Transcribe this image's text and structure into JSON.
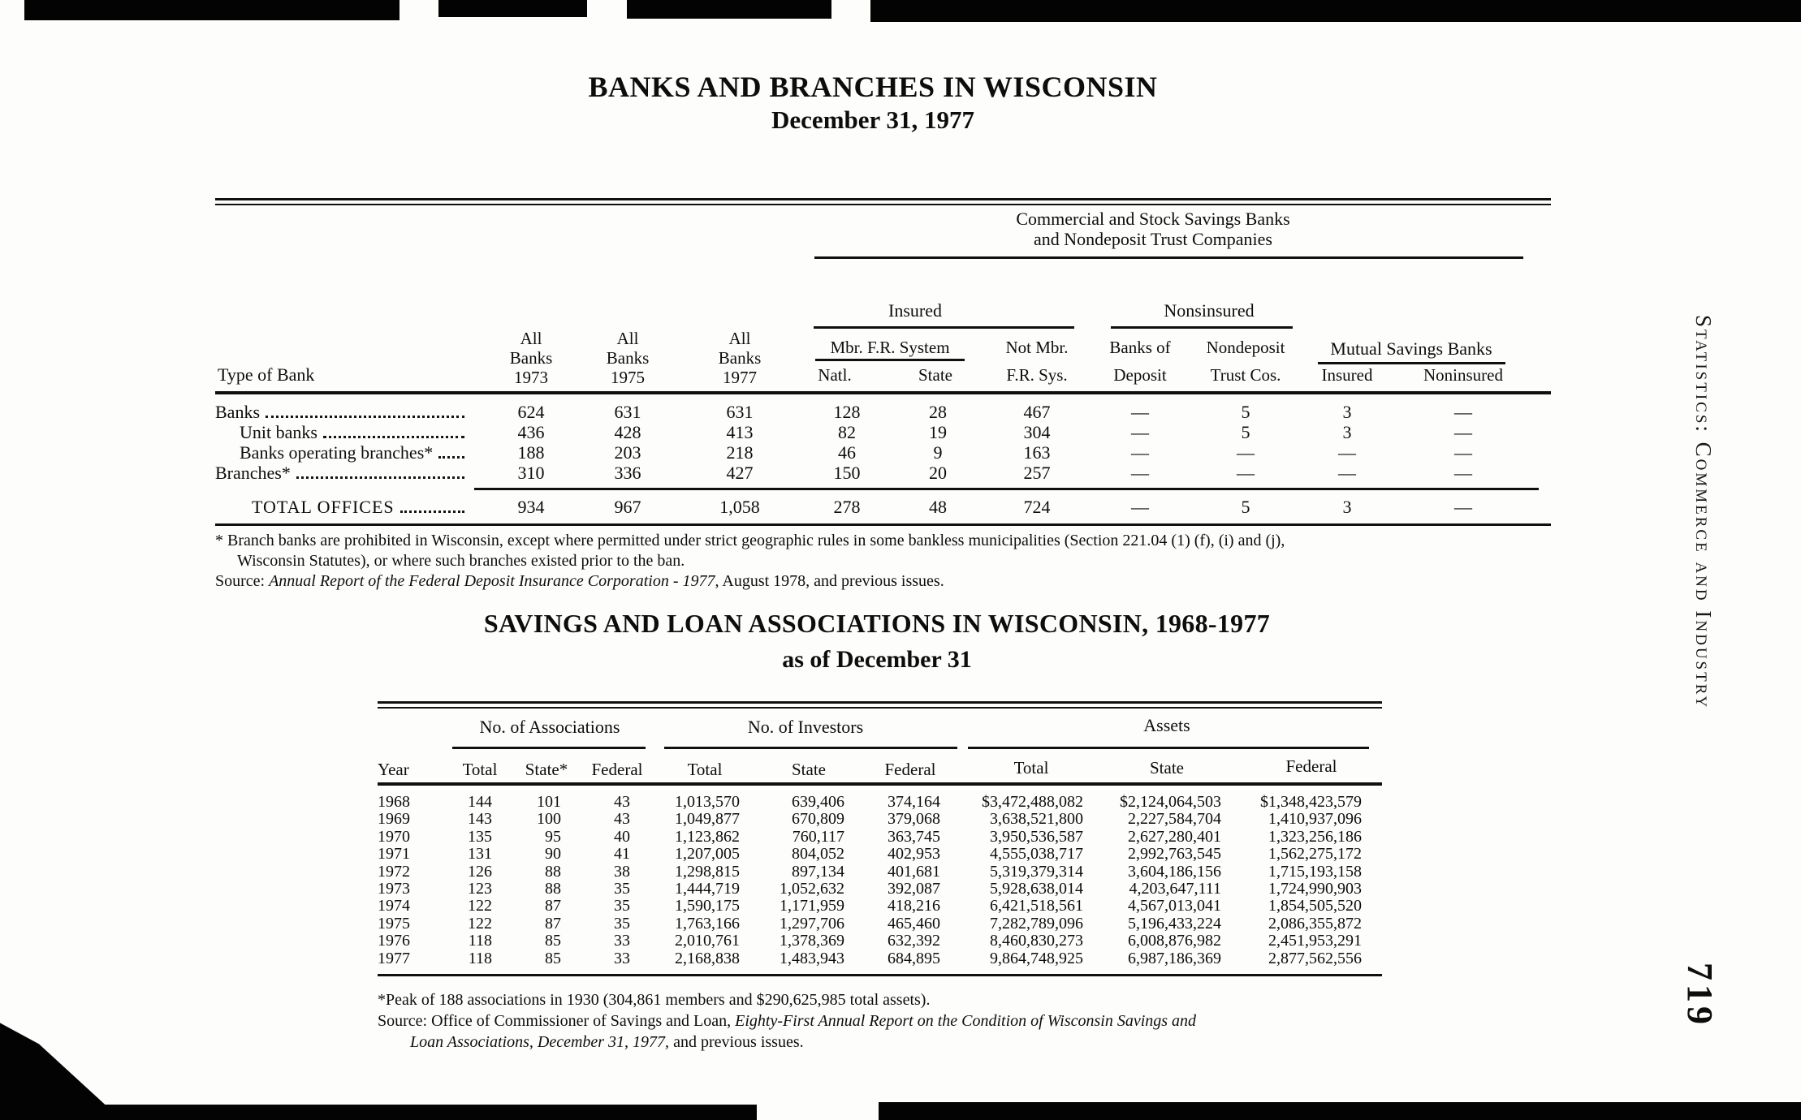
{
  "page": {
    "side_label": "Statistics: Commerce and Industry",
    "page_number": "719"
  },
  "banks_table": {
    "title": "BANKS AND BRANCHES IN WISCONSIN",
    "subtitle": "December 31, 1977",
    "span_header": [
      "Commercial and Stock Savings Banks",
      "and Nondeposit Trust Companies"
    ],
    "group_insured": "Insured",
    "group_noninsured": "Nonsinsured",
    "col_type": "Type of Bank",
    "col_all_1973": [
      "All",
      "Banks",
      "1973"
    ],
    "col_all_1975": [
      "All",
      "Banks",
      "1975"
    ],
    "col_all_1977": [
      "All",
      "Banks",
      "1977"
    ],
    "col_mbr": "Mbr. F.R. System",
    "col_natl": "Natl.",
    "col_state": "State",
    "col_notmbr": [
      "Not Mbr.",
      "F.R. Sys."
    ],
    "col_banks_deposit": [
      "Banks of",
      "Deposit"
    ],
    "col_nondeposit": [
      "Nondeposit",
      "Trust Cos."
    ],
    "col_msb": "Mutual Savings Banks",
    "col_msb_insured": "Insured",
    "col_msb_noninsured": "Noninsured",
    "rows": [
      {
        "label": "Banks",
        "indent": 0,
        "values": [
          "624",
          "631",
          "631",
          "128",
          "28",
          "467",
          "—",
          "5",
          "3",
          "—"
        ]
      },
      {
        "label": "Unit banks",
        "indent": 1,
        "values": [
          "436",
          "428",
          "413",
          "82",
          "19",
          "304",
          "—",
          "5",
          "3",
          "—"
        ]
      },
      {
        "label": "Banks operating branches*",
        "indent": 1,
        "values": [
          "188",
          "203",
          "218",
          "46",
          "9",
          "163",
          "—",
          "—",
          "—",
          "—"
        ]
      },
      {
        "label": "Branches*",
        "indent": 0,
        "values": [
          "310",
          "336",
          "427",
          "150",
          "20",
          "257",
          "—",
          "—",
          "—",
          "—"
        ]
      }
    ],
    "total_row": {
      "label": "TOTAL OFFICES",
      "values": [
        "934",
        "967",
        "1,058",
        "278",
        "48",
        "724",
        "—",
        "5",
        "3",
        "—"
      ]
    },
    "footnote_line1": "* Branch banks are prohibited in Wisconsin, except where permitted under strict geographic rules in some bankless municipalities (Section 221.04 (1) (f), (i) and (j),",
    "footnote_line2": "Wisconsin Statutes), or where such branches existed prior to the ban.",
    "source_prefix": "Source: ",
    "source_italic": "Annual Report of the Federal Deposit Insurance Corporation - 1977",
    "source_suffix": ", August 1978, and previous issues."
  },
  "sl_table": {
    "title": "SAVINGS AND LOAN ASSOCIATIONS IN WISCONSIN, 1968-1977",
    "subtitle": "as of December 31",
    "group_assoc": "No. of Associations",
    "group_investors": "No. of Investors",
    "group_assets": "Assets",
    "col_year": "Year",
    "assoc_cols": [
      "Total",
      "State*",
      "Federal"
    ],
    "investor_cols": [
      "Total",
      "State",
      "Federal"
    ],
    "asset_cols": [
      "Total",
      "State",
      "Federal"
    ],
    "rows": [
      [
        "1968",
        "144",
        "101",
        "43",
        "1,013,570",
        "639,406",
        "374,164",
        "$3,472,488,082",
        "$2,124,064,503",
        "$1,348,423,579"
      ],
      [
        "1969",
        "143",
        "100",
        "43",
        "1,049,877",
        "670,809",
        "379,068",
        "3,638,521,800",
        "2,227,584,704",
        "1,410,937,096"
      ],
      [
        "1970",
        "135",
        "95",
        "40",
        "1,123,862",
        "760,117",
        "363,745",
        "3,950,536,587",
        "2,627,280,401",
        "1,323,256,186"
      ],
      [
        "1971",
        "131",
        "90",
        "41",
        "1,207,005",
        "804,052",
        "402,953",
        "4,555,038,717",
        "2,992,763,545",
        "1,562,275,172"
      ],
      [
        "1972",
        "126",
        "88",
        "38",
        "1,298,815",
        "897,134",
        "401,681",
        "5,319,379,314",
        "3,604,186,156",
        "1,715,193,158"
      ],
      [
        "1973",
        "123",
        "88",
        "35",
        "1,444,719",
        "1,052,632",
        "392,087",
        "5,928,638,014",
        "4,203,647,111",
        "1,724,990,903"
      ],
      [
        "1974",
        "122",
        "87",
        "35",
        "1,590,175",
        "1,171,959",
        "418,216",
        "6,421,518,561",
        "4,567,013,041",
        "1,854,505,520"
      ],
      [
        "1975",
        "122",
        "87",
        "35",
        "1,763,166",
        "1,297,706",
        "465,460",
        "7,282,789,096",
        "5,196,433,224",
        "2,086,355,872"
      ],
      [
        "1976",
        "118",
        "85",
        "33",
        "2,010,761",
        "1,378,369",
        "632,392",
        "8,460,830,273",
        "6,008,876,982",
        "2,451,953,291"
      ],
      [
        "1977",
        "118",
        "85",
        "33",
        "2,168,838",
        "1,483,943",
        "684,895",
        "9,864,748,925",
        "6,987,186,369",
        "2,877,562,556"
      ]
    ],
    "footnote": "*Peak of 188 associations in 1930 (304,861 members and $290,625,985 total assets).",
    "source_prefix": "Source: Office of Commissioner of Savings and Loan, ",
    "source_italic1": "Eighty-First Annual Report on the Condition of Wisconsin Savings and",
    "source_italic2": "Loan Associations, December 31, 1977,",
    "source_suffix": " and previous issues."
  }
}
